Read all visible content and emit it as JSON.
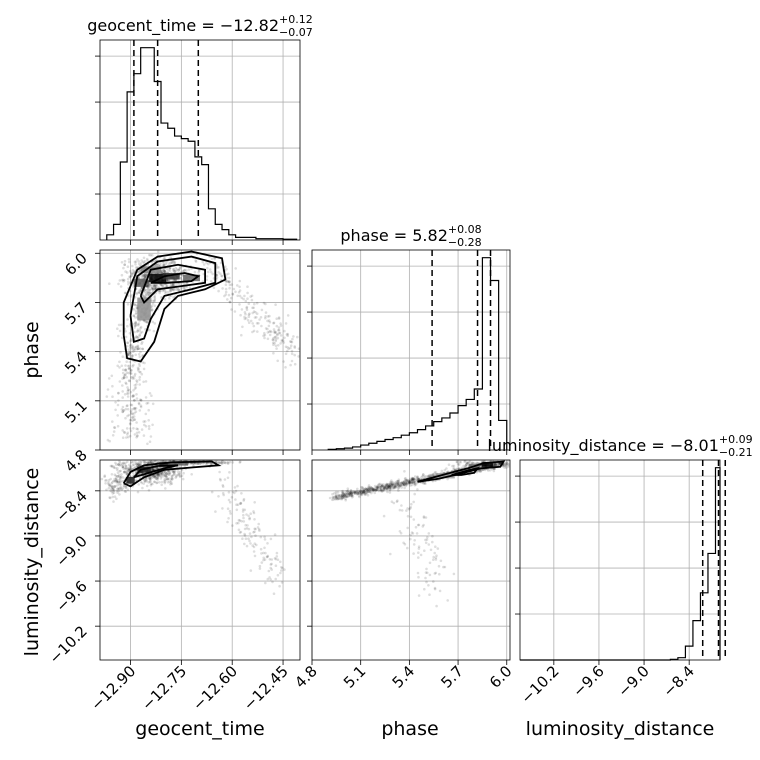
{
  "chart_data": {
    "type": "corner",
    "parameters": [
      "geocent_time",
      "phase",
      "luminosity_distance"
    ],
    "axis_labels": {
      "geocent_time": "geocent_time",
      "phase": "phase",
      "luminosity_distance": "luminosity_distance"
    },
    "ranges": {
      "geocent_time": [
        -12.99,
        -12.4
      ],
      "phase": [
        4.8,
        6.02
      ],
      "luminosity_distance": [
        -10.65,
        -7.99
      ]
    },
    "ticks": {
      "geocent_time": [
        -12.9,
        -12.75,
        -12.6,
        -12.45
      ],
      "phase": [
        4.8,
        5.1,
        5.4,
        5.7,
        6.0
      ],
      "luminosity_distance": [
        -10.2,
        -9.6,
        -9.0,
        -8.4
      ]
    },
    "tick_labels": {
      "geocent_time": [
        "−12.90",
        "−12.75",
        "−12.60",
        "−12.45"
      ],
      "phase": [
        "4.8",
        "5.1",
        "5.4",
        "5.7",
        "6.0"
      ],
      "luminosity_distance": [
        "−10.2",
        "−9.6",
        "−9.0",
        "−8.4"
      ]
    },
    "titles": {
      "geocent_time": {
        "name": "geocent_time",
        "median": "−12.82",
        "plus": "+0.12",
        "minus": "−0.07"
      },
      "phase": {
        "name": "phase",
        "median": "5.82",
        "plus": "+0.08",
        "minus": "−0.28"
      },
      "luminosity_distance": {
        "name": "luminosity_distance",
        "median": "−8.01",
        "plus": "+0.09",
        "minus": "−0.21"
      }
    },
    "quantiles": {
      "geocent_time": [
        -12.89,
        -12.82,
        -12.7
      ],
      "phase": [
        5.54,
        5.82,
        5.9
      ],
      "luminosity_distance": [
        -8.22,
        -8.01,
        -7.92
      ]
    },
    "histograms": {
      "geocent_time": {
        "edges": [
          -12.97,
          -12.95,
          -12.93,
          -12.91,
          -12.89,
          -12.87,
          -12.85,
          -12.83,
          -12.81,
          -12.79,
          -12.77,
          -12.75,
          -12.73,
          -12.71,
          -12.69,
          -12.67,
          -12.65,
          -12.63,
          -12.61,
          -12.59,
          -12.57,
          -12.55,
          -12.53,
          -12.51,
          -12.49,
          -12.47,
          -12.45,
          -12.43,
          -12.41
        ],
        "counts": [
          2,
          6,
          30,
          57,
          64,
          74,
          74,
          61,
          45,
          43,
          40,
          39,
          38,
          32,
          29,
          12,
          6,
          4,
          2,
          1,
          1,
          1,
          0.5,
          0.5,
          0.5,
          0.5,
          0.3,
          0.3
        ]
      },
      "phase": {
        "edges": [
          4.9,
          4.95,
          5.0,
          5.05,
          5.1,
          5.15,
          5.2,
          5.25,
          5.3,
          5.35,
          5.4,
          5.45,
          5.5,
          5.55,
          5.6,
          5.65,
          5.7,
          5.75,
          5.8,
          5.85,
          5.9,
          5.95,
          6.0
        ],
        "counts": [
          1,
          2,
          3,
          5,
          8,
          11,
          14,
          17,
          20,
          24,
          28,
          33,
          39,
          46,
          52,
          60,
          72,
          82,
          99,
          312,
          275,
          48
        ]
      },
      "luminosity_distance": {
        "edges": [
          -10.65,
          -10.55,
          -10.45,
          -10.35,
          -10.25,
          -10.15,
          -10.05,
          -9.95,
          -9.85,
          -9.75,
          -9.65,
          -9.55,
          -9.45,
          -9.35,
          -9.25,
          -9.15,
          -9.05,
          -8.95,
          -8.85,
          -8.75,
          -8.65,
          -8.55,
          -8.45,
          -8.35,
          -8.25,
          -8.15,
          -8.05,
          -7.99
        ],
        "counts": [
          0,
          0,
          0,
          0,
          0,
          0,
          0,
          0,
          0,
          0,
          0,
          0,
          0,
          0,
          0,
          0,
          0,
          0,
          0,
          0,
          0.3,
          1,
          6,
          17,
          29,
          46,
          83
        ]
      }
    },
    "density_blocks": {
      "phase_vs_geocent_time": [
        {
          "x": -12.87,
          "y": 5.82,
          "w": 0.04,
          "h": 0.05,
          "level": 0.55
        },
        {
          "x": -12.82,
          "y": 5.85,
          "w": 0.05,
          "h": 0.05,
          "level": 1.0
        },
        {
          "x": -12.78,
          "y": 5.86,
          "w": 0.05,
          "h": 0.04,
          "level": 0.75
        },
        {
          "x": -12.72,
          "y": 5.85,
          "w": 0.05,
          "h": 0.04,
          "level": 0.5
        },
        {
          "x": -12.86,
          "y": 5.66,
          "w": 0.04,
          "h": 0.14,
          "level": 0.3
        },
        {
          "x": -12.84,
          "y": 5.9,
          "w": 0.06,
          "h": 0.04,
          "level": 0.35
        }
      ],
      "luminosity_distance_vs_geocent_time": [
        {
          "x": -12.9,
          "y": -8.26,
          "w": 0.025,
          "h": 0.09,
          "level": 0.9
        },
        {
          "x": -12.86,
          "y": -8.12,
          "w": 0.04,
          "h": 0.08,
          "level": 0.85
        },
        {
          "x": -12.8,
          "y": -8.05,
          "w": 0.03,
          "h": 0.06,
          "level": 0.9
        },
        {
          "x": -12.76,
          "y": -8.04,
          "w": 0.06,
          "h": 0.05,
          "level": 0.5
        }
      ],
      "luminosity_distance_vs_phase": [
        {
          "x": 5.88,
          "y": -8.05,
          "w": 0.07,
          "h": 0.06,
          "level": 1.0
        },
        {
          "x": 5.8,
          "y": -8.07,
          "w": 0.07,
          "h": 0.06,
          "level": 0.45
        },
        {
          "x": 5.62,
          "y": -8.2,
          "w": 0.12,
          "h": 0.07,
          "level": 0.2
        }
      ]
    },
    "contours": {
      "phase_vs_geocent_time": [
        [
          [
            -12.84,
            5.82
          ],
          [
            -12.8,
            5.86
          ],
          [
            -12.74,
            5.88
          ],
          [
            -12.7,
            5.86
          ],
          [
            -12.72,
            5.83
          ],
          [
            -12.79,
            5.82
          ],
          [
            -12.84,
            5.82
          ]
        ],
        [
          [
            -12.87,
            5.74
          ],
          [
            -12.84,
            5.9
          ],
          [
            -12.76,
            5.93
          ],
          [
            -12.68,
            5.9
          ],
          [
            -12.68,
            5.82
          ],
          [
            -12.75,
            5.8
          ],
          [
            -12.82,
            5.78
          ],
          [
            -12.86,
            5.7
          ],
          [
            -12.87,
            5.74
          ]
        ],
        [
          [
            -12.9,
            5.62
          ],
          [
            -12.88,
            5.86
          ],
          [
            -12.82,
            5.95
          ],
          [
            -12.72,
            5.98
          ],
          [
            -12.65,
            5.94
          ],
          [
            -12.65,
            5.82
          ],
          [
            -12.72,
            5.78
          ],
          [
            -12.8,
            5.74
          ],
          [
            -12.84,
            5.6
          ],
          [
            -12.86,
            5.48
          ],
          [
            -12.89,
            5.46
          ],
          [
            -12.9,
            5.62
          ]
        ],
        [
          [
            -12.92,
            5.5
          ],
          [
            -12.92,
            5.7
          ],
          [
            -12.88,
            5.9
          ],
          [
            -12.82,
            5.98
          ],
          [
            -12.72,
            6.01
          ],
          [
            -12.63,
            5.97
          ],
          [
            -12.62,
            5.84
          ],
          [
            -12.68,
            5.78
          ],
          [
            -12.76,
            5.74
          ],
          [
            -12.8,
            5.66
          ],
          [
            -12.83,
            5.46
          ],
          [
            -12.87,
            5.34
          ],
          [
            -12.91,
            5.36
          ],
          [
            -12.92,
            5.5
          ]
        ]
      ],
      "luminosity_distance_vs_geocent_time": [
        [
          [
            -12.92,
            -8.3
          ],
          [
            -12.9,
            -8.15
          ],
          [
            -12.86,
            -8.06
          ],
          [
            -12.78,
            -8.02
          ],
          [
            -12.66,
            -8.01
          ],
          [
            -12.64,
            -8.06
          ],
          [
            -12.72,
            -8.09
          ],
          [
            -12.8,
            -8.12
          ],
          [
            -12.86,
            -8.22
          ],
          [
            -12.9,
            -8.34
          ],
          [
            -12.92,
            -8.3
          ]
        ],
        [
          [
            -12.89,
            -8.22
          ],
          [
            -12.87,
            -8.12
          ],
          [
            -12.82,
            -8.07
          ],
          [
            -12.76,
            -8.06
          ],
          [
            -12.8,
            -8.1
          ],
          [
            -12.86,
            -8.18
          ],
          [
            -12.89,
            -8.22
          ]
        ]
      ],
      "luminosity_distance_vs_phase": [
        [
          [
            5.45,
            -8.28
          ],
          [
            5.62,
            -8.18
          ],
          [
            5.76,
            -8.1
          ],
          [
            5.86,
            -8.03
          ],
          [
            5.98,
            -8.01
          ],
          [
            5.96,
            -8.08
          ],
          [
            5.84,
            -8.1
          ],
          [
            5.72,
            -8.17
          ],
          [
            5.58,
            -8.24
          ],
          [
            5.45,
            -8.28
          ]
        ],
        [
          [
            5.66,
            -8.19
          ],
          [
            5.76,
            -8.13
          ],
          [
            5.82,
            -8.1
          ],
          [
            5.8,
            -8.16
          ],
          [
            5.72,
            -8.19
          ],
          [
            5.66,
            -8.19
          ]
        ]
      ]
    }
  }
}
